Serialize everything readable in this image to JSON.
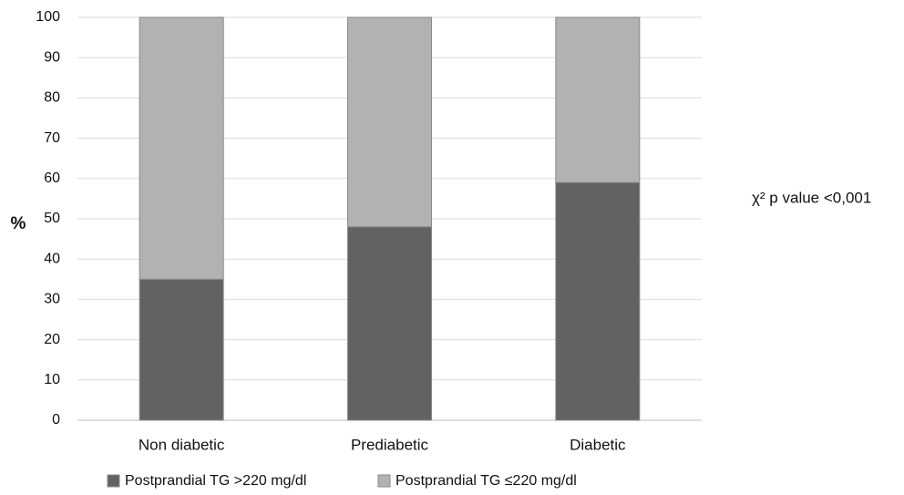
{
  "chart_data": {
    "type": "bar",
    "stacked": true,
    "categories": [
      "Non diabetic",
      "Prediabetic",
      "Diabetic"
    ],
    "series": [
      {
        "name": "Postprandial TG >220 mg/dl",
        "values": [
          35,
          48,
          59
        ],
        "color": "#626262"
      },
      {
        "name": "Postprandial TG ≤220 mg/dl",
        "values": [
          65,
          52,
          41
        ],
        "color": "#b2b2b2"
      }
    ],
    "ylabel": "%",
    "ylim": [
      0,
      100
    ],
    "yticks": [
      0,
      10,
      20,
      30,
      40,
      50,
      60,
      70,
      80,
      90,
      100
    ],
    "grid": true,
    "legend": "bottom",
    "annotation": "χ² p value <0,001"
  }
}
